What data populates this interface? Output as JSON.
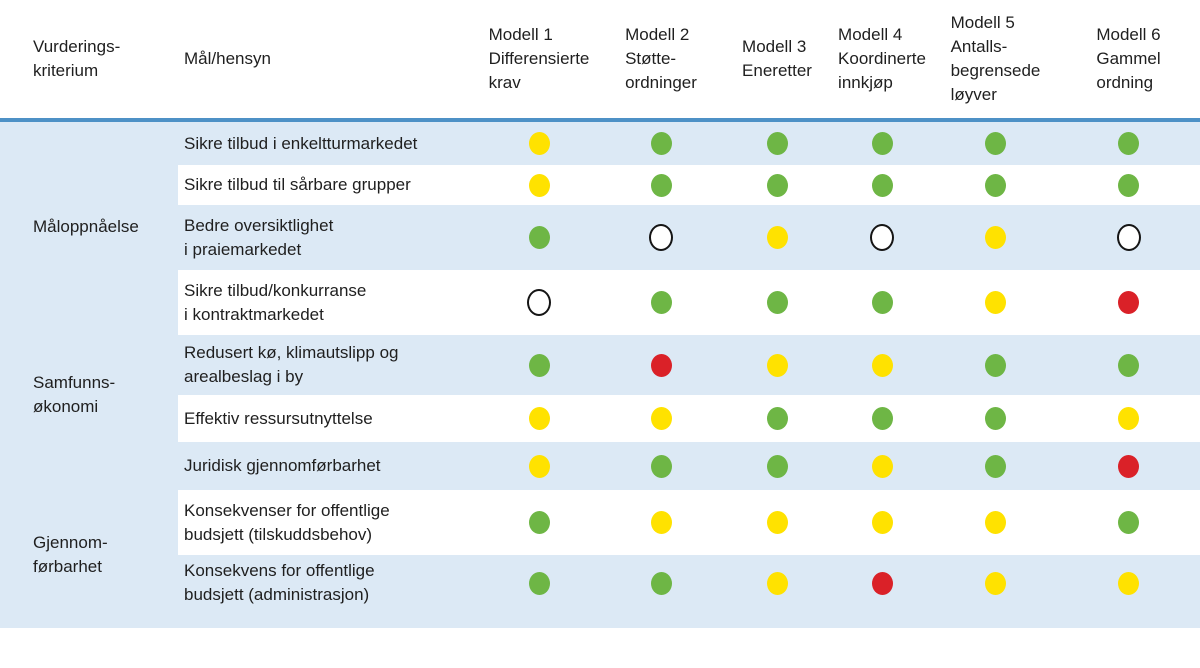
{
  "colors": {
    "green": "#6eb645",
    "yellow": "#ffe200",
    "red": "#da2128",
    "blank_fill": "#ffffff",
    "blank_border": "#151515",
    "divider": "#4d91c6",
    "row_blue": "#dce9f5",
    "row_white": "#ffffff"
  },
  "chart_data": {
    "type": "table",
    "header": {
      "criterion": "Vurderings-\nkriterium",
      "goal": "Mål/hensyn",
      "models": [
        "Modell 1\nDifferensierte\nkrav",
        "Modell 2\nStøtte-\nordninger",
        "Modell 3\nEneretter",
        "Modell 4\nKoordinerte\ninnkjøp",
        "Modell 5\nAntalls-\nbegrensede\nløyver",
        "Modell 6\nGammel\nordning"
      ]
    },
    "rating_scale": [
      "green",
      "yellow",
      "red",
      "none"
    ],
    "row_groups": [
      {
        "label": "Måloppnåelse",
        "rows": [
          {
            "goal": "Sikre tilbud i enkeltturmarkedet",
            "ratings": [
              "yellow",
              "green",
              "green",
              "green",
              "green",
              "green"
            ]
          },
          {
            "goal": "Sikre tilbud til sårbare grupper",
            "ratings": [
              "yellow",
              "green",
              "green",
              "green",
              "green",
              "green"
            ]
          },
          {
            "goal": "Bedre oversiktlighet\ni praiemarkedet",
            "ratings": [
              "green",
              "none",
              "yellow",
              "none",
              "yellow",
              "none"
            ]
          },
          {
            "goal": "Sikre tilbud/konkurranse\ni kontraktmarkedet",
            "ratings": [
              "none",
              "green",
              "green",
              "green",
              "yellow",
              "red"
            ]
          }
        ]
      },
      {
        "label": "Samfunns-\nøkonomi",
        "rows": [
          {
            "goal": "Redusert kø, klimautslipp og\narealbeslag i by",
            "ratings": [
              "green",
              "red",
              "yellow",
              "yellow",
              "green",
              "green"
            ]
          },
          {
            "goal": "Effektiv ressursutnyttelse",
            "ratings": [
              "yellow",
              "yellow",
              "green",
              "green",
              "green",
              "yellow"
            ]
          }
        ]
      },
      {
        "label": "Gjennom-\nførbarhet",
        "rows": [
          {
            "goal": "Juridisk gjennomførbarhet",
            "ratings": [
              "yellow",
              "green",
              "green",
              "yellow",
              "green",
              "red"
            ]
          },
          {
            "goal": "Konsekvenser for offentlige\nbudsjett (tilskuddsbehov)",
            "ratings": [
              "green",
              "yellow",
              "yellow",
              "yellow",
              "yellow",
              "green"
            ]
          },
          {
            "goal": "Konsekvens for offentlige\nbudsjett (administrasjon)",
            "ratings": [
              "green",
              "green",
              "yellow",
              "red",
              "yellow",
              "yellow"
            ]
          }
        ]
      }
    ]
  }
}
